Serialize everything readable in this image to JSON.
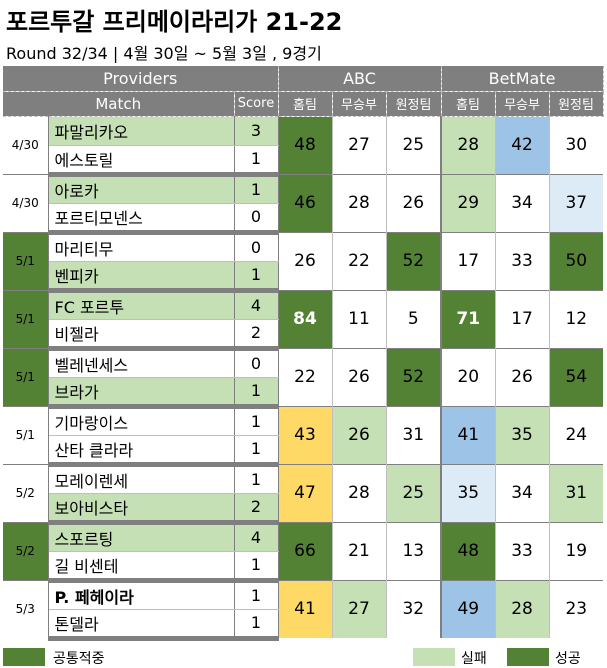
{
  "title": "포르투갈 프리메이라리가 21-22",
  "subtitle": "Round 32/34 | 4월 30일 ~ 5월 3일 , 9경기",
  "header": {
    "providers": "Providers",
    "abc": "ABC",
    "betmate": "BetMate",
    "match": "Match",
    "score": "Score",
    "home": "홈팀",
    "draw": "무승부",
    "away": "원정팀"
  },
  "colors": {
    "dark_green": "#548235",
    "light_green": "#c5e0b4",
    "blue": "#9dc3e6",
    "light_blue": "#ddebf7",
    "yellow": "#ffd966",
    "header_gray": "#7f7f7f"
  },
  "matches": [
    {
      "date": "4/30",
      "home": "파말리카오",
      "away": "에스토릴",
      "home_score": "3",
      "away_score": "1",
      "abc": [
        "48",
        "27",
        "25"
      ],
      "betmate": [
        "28",
        "42",
        "30"
      ]
    },
    {
      "date": "4/30",
      "home": "아로카",
      "away": "포르티모넨스",
      "home_score": "1",
      "away_score": "0",
      "abc": [
        "46",
        "28",
        "26"
      ],
      "betmate": [
        "29",
        "34",
        "37"
      ]
    },
    {
      "date": "5/1",
      "home": "마리티무",
      "away": "벤피카",
      "home_score": "0",
      "away_score": "1",
      "abc": [
        "26",
        "22",
        "52"
      ],
      "betmate": [
        "17",
        "33",
        "50"
      ]
    },
    {
      "date": "5/1",
      "home": "FC 포르투",
      "away": "비젤라",
      "home_score": "4",
      "away_score": "2",
      "abc": [
        "84",
        "11",
        "5"
      ],
      "betmate": [
        "71",
        "17",
        "12"
      ]
    },
    {
      "date": "5/1",
      "home": "벨레넨세스",
      "away": "브라가",
      "home_score": "0",
      "away_score": "1",
      "abc": [
        "22",
        "26",
        "52"
      ],
      "betmate": [
        "20",
        "26",
        "54"
      ]
    },
    {
      "date": "5/1",
      "home": "기마랑이스",
      "away": "산타 클라라",
      "home_score": "1",
      "away_score": "1",
      "abc": [
        "43",
        "26",
        "31"
      ],
      "betmate": [
        "41",
        "35",
        "24"
      ]
    },
    {
      "date": "5/2",
      "home": "모레이렌세",
      "away": "보아비스타",
      "home_score": "1",
      "away_score": "2",
      "abc": [
        "47",
        "28",
        "25"
      ],
      "betmate": [
        "35",
        "34",
        "31"
      ]
    },
    {
      "date": "5/2",
      "home": "스포르팅",
      "away": "길 비센테",
      "home_score": "4",
      "away_score": "1",
      "abc": [
        "66",
        "21",
        "13"
      ],
      "betmate": [
        "48",
        "33",
        "19"
      ]
    },
    {
      "date": "5/3",
      "home": "P. 페헤이라",
      "away": "톤델라",
      "home_score": "1",
      "away_score": "1",
      "abc": [
        "41",
        "27",
        "32"
      ],
      "betmate": [
        "49",
        "28",
        "23"
      ]
    }
  ],
  "legend": {
    "common_hit": "공통적중",
    "fail": "실패",
    "success": "성공"
  }
}
